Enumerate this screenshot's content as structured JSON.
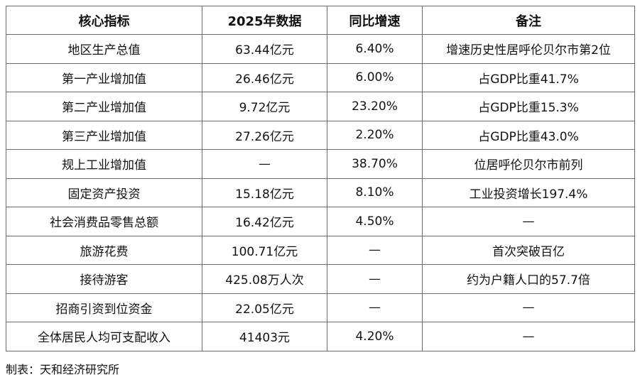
{
  "table": {
    "headers": [
      "核心指标",
      "2025年数据",
      "同比增速",
      "备注"
    ],
    "rows": [
      [
        "地区生产总值",
        "63.44亿元",
        "6.40%",
        "增速历史性居呼伦贝尔市第2位"
      ],
      [
        "第一产业增加值",
        "26.46亿元",
        "6.00%",
        "占GDP比重41.7%"
      ],
      [
        "第二产业增加值",
        "9.72亿元",
        "23.20%",
        "占GDP比重15.3%"
      ],
      [
        "第三产业增加值",
        "27.26亿元",
        "2.20%",
        "占GDP比重43.0%"
      ],
      [
        "规上工业增加值",
        "—",
        "38.70%",
        "位居呼伦贝尔市前列"
      ],
      [
        "固定资产投资",
        "15.18亿元",
        "8.10%",
        "工业投资增长197.4%"
      ],
      [
        "社会消费品零售总额",
        "16.42亿元",
        "4.50%",
        "—"
      ],
      [
        "旅游花费",
        "100.71亿元",
        "—",
        "首次突破百亿"
      ],
      [
        "接待游客",
        "425.08万人次",
        "—",
        "约为户籍人口的57.7倍"
      ],
      [
        "招商引资到位资金",
        "22.05亿元",
        "—",
        "—"
      ],
      [
        "全体居民人均可支配收入",
        "41403元",
        "4.20%",
        "—"
      ]
    ]
  },
  "caption": "制表：天和经济研究所"
}
